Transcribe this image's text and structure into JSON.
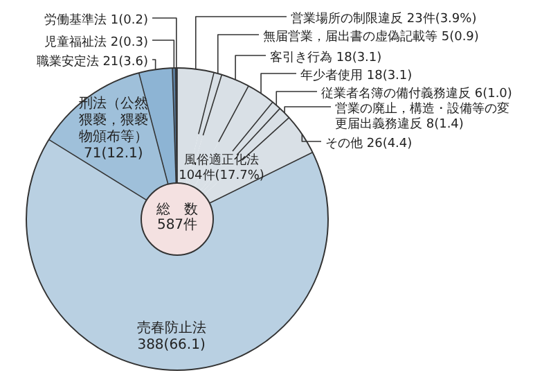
{
  "chart_data": {
    "type": "donut",
    "categories": [
      "営業場所の制限違反",
      "無届営業，届出書の虚偽記載等",
      "客引き行為",
      "年少者使用",
      "従業者名簿の備付義務違反",
      "営業の廃止，構造・設備等の変更届出義務違反",
      "その他",
      "売春防止法",
      "刑法（公然猥褻，猥褻物頒布等）",
      "職業安定法",
      "児童福祉法",
      "労働基準法"
    ],
    "values": [
      23,
      5,
      18,
      18,
      6,
      8,
      26,
      388,
      71,
      21,
      2,
      1
    ],
    "value_labels": [
      "23件(3.9%)",
      "5(0.9)",
      "18(3.1)",
      "18(3.1)",
      "6(1.0)",
      "8(1.4)",
      "26(4.4)",
      "388(66.1)",
      "71(12.1)",
      "21(3.6)",
      "2(0.3)",
      "1(0.2)"
    ],
    "colors": [
      "#d9e0e6",
      "#d9e0e6",
      "#d9e0e6",
      "#d9e0e6",
      "#d9e0e6",
      "#d9e0e6",
      "#d9e0e6",
      "#b9d0e2",
      "#9fc0da",
      "#8db4d4",
      "#5c7fa0",
      "#2f3f52"
    ],
    "annotations": [
      "風俗適正化法\n104件(17.7%)",
      "総　数\n587件"
    ]
  }
}
